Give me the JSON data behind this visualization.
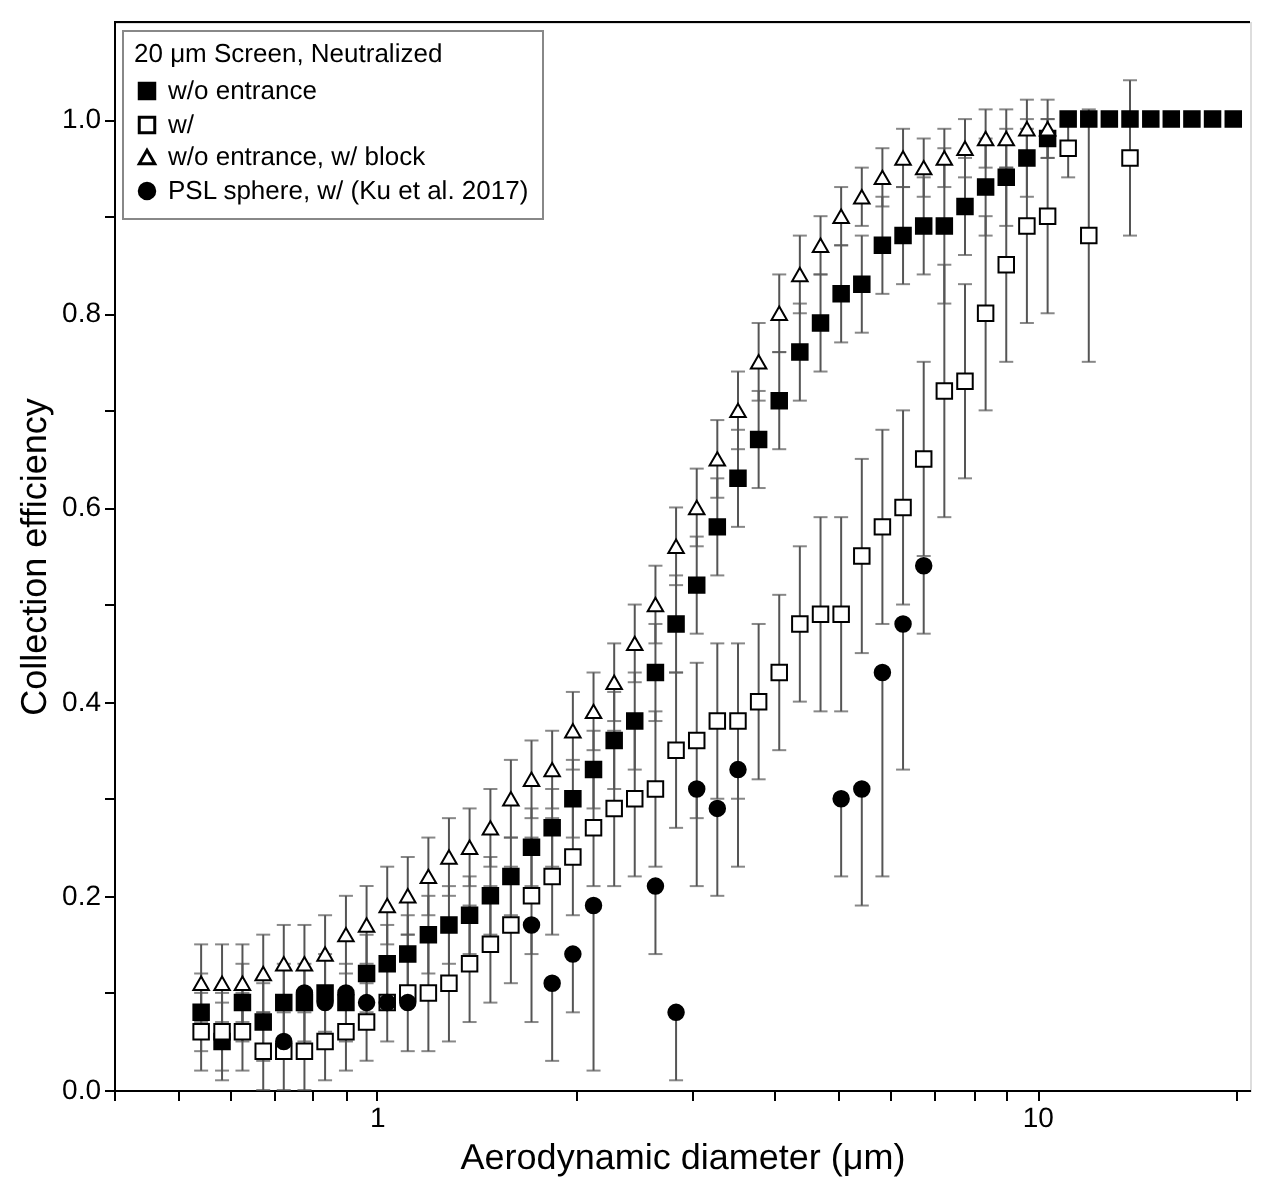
{
  "chart_data": {
    "type": "scatter",
    "xlabel": "Aerodynamic diameter (μm)",
    "ylabel": "Collection efficiency",
    "legend_title": "20 μm Screen, Neutralized",
    "legend": "top left",
    "grid": false,
    "log": "x",
    "xlim": [
      0.4,
      21
    ],
    "ylim": [
      0,
      1.1
    ],
    "xticks": [
      {
        "value": 0.4,
        "label": null
      },
      {
        "value": 0.5,
        "label": null
      },
      {
        "value": 0.6,
        "label": null
      },
      {
        "value": 0.7,
        "label": null
      },
      {
        "value": 0.8,
        "label": null
      },
      {
        "value": 0.9,
        "label": null
      },
      1,
      {
        "value": 2,
        "label": null
      },
      {
        "value": 3,
        "label": null
      },
      {
        "value": 4,
        "label": null
      },
      {
        "value": 5,
        "label": null
      },
      {
        "value": 6,
        "label": null
      },
      {
        "value": 7,
        "label": null
      },
      {
        "value": 8,
        "label": null
      },
      {
        "value": 9,
        "label": null
      },
      10,
      {
        "value": 20,
        "label": null
      }
    ],
    "yticks": [
      {
        "value": 0,
        "label": "0.0"
      },
      {
        "value": 0.1,
        "label": null
      },
      {
        "value": 0.2,
        "label": "0.2"
      },
      {
        "value": 0.3,
        "label": null
      },
      {
        "value": 0.4,
        "label": "0.4"
      },
      {
        "value": 0.5,
        "label": null
      },
      {
        "value": 0.6,
        "label": "0.6"
      },
      {
        "value": 0.7,
        "label": null
      },
      {
        "value": 0.8,
        "label": "0.8"
      },
      {
        "value": 0.9,
        "label": null
      },
      {
        "value": 1.0,
        "label": "1.0"
      }
    ],
    "series": [
      {
        "name": "w/o entrance",
        "color": "#000000",
        "marker": "square",
        "x": [
          0.542,
          0.583,
          0.626,
          0.673,
          0.723,
          0.777,
          0.835,
          0.898,
          0.965,
          1.037,
          1.114,
          1.197,
          1.286,
          1.382,
          1.486,
          1.596,
          1.715,
          1.843,
          1.981,
          2.129,
          2.288,
          2.458,
          2.642,
          2.839,
          3.051,
          3.278,
          3.523,
          3.786,
          4.068,
          4.371,
          4.698,
          5.048,
          5.425,
          5.829,
          6.264,
          6.732,
          7.234,
          7.774,
          8.354,
          8.977,
          9.647,
          10.37,
          11.14,
          11.97,
          12.86,
          13.82,
          14.86,
          15.96,
          17.15,
          18.43,
          19.81
        ],
        "values": [
          0.08,
          0.05,
          0.09,
          0.07,
          0.09,
          0.09,
          0.1,
          0.09,
          0.12,
          0.13,
          0.14,
          0.16,
          0.17,
          0.18,
          0.2,
          0.22,
          0.25,
          0.27,
          0.3,
          0.33,
          0.36,
          0.38,
          0.43,
          0.48,
          0.52,
          0.58,
          0.63,
          0.67,
          0.71,
          0.76,
          0.79,
          0.82,
          0.83,
          0.87,
          0.88,
          0.89,
          0.89,
          0.91,
          0.93,
          0.94,
          0.96,
          0.98,
          1,
          1,
          1,
          1,
          1,
          1,
          1,
          1,
          1
        ],
        "errors": [
          0.04,
          0.04,
          0.04,
          0.04,
          0.04,
          0.04,
          0.04,
          0.04,
          0.04,
          0.04,
          0.04,
          0.04,
          0.04,
          0.04,
          0.04,
          0.04,
          0.04,
          0.04,
          0.04,
          0.04,
          0.05,
          0.05,
          0.05,
          0.05,
          0.05,
          0.05,
          0.05,
          0.05,
          0.05,
          0.05,
          0.05,
          0.05,
          0.05,
          0.05,
          0.05,
          0.05,
          0.08,
          0.05,
          0.05,
          0.05,
          0.04,
          0.02,
          null,
          null,
          null,
          null,
          null,
          null,
          null,
          null,
          null
        ]
      },
      {
        "name": "w/",
        "color": "#000000",
        "marker": "square-open",
        "x": [
          0.542,
          0.583,
          0.626,
          0.673,
          0.723,
          0.777,
          0.835,
          0.898,
          0.965,
          1.037,
          1.114,
          1.197,
          1.286,
          1.382,
          1.486,
          1.596,
          1.715,
          1.843,
          1.981,
          2.129,
          2.288,
          2.458,
          2.642,
          2.839,
          3.051,
          3.278,
          3.523,
          3.786,
          4.068,
          4.371,
          4.698,
          5.048,
          5.425,
          5.829,
          6.264,
          6.732,
          7.234,
          7.774,
          8.354,
          8.977,
          9.647,
          10.37,
          11.14,
          11.97,
          12.86,
          13.82
        ],
        "values": [
          0.06,
          0.06,
          0.06,
          0.04,
          0.04,
          0.04,
          0.05,
          0.06,
          0.07,
          0.09,
          0.1,
          0.1,
          0.11,
          0.13,
          0.15,
          0.17,
          0.2,
          0.22,
          0.24,
          0.27,
          0.29,
          0.3,
          0.31,
          0.35,
          0.36,
          0.38,
          0.38,
          0.4,
          0.43,
          0.48,
          0.49,
          0.49,
          0.55,
          0.58,
          0.6,
          0.65,
          0.72,
          0.73,
          0.8,
          0.85,
          0.89,
          0.9,
          0.97,
          0.88,
          null,
          0.96
        ],
        "errors": [
          0.04,
          0.04,
          0.04,
          0.04,
          0.04,
          0.04,
          0.04,
          0.04,
          0.04,
          0.04,
          0.06,
          0.06,
          0.06,
          0.06,
          0.06,
          0.06,
          0.06,
          0.06,
          0.06,
          0.06,
          0.08,
          0.08,
          0.08,
          0.08,
          0.08,
          0.08,
          0.08,
          0.08,
          0.08,
          0.08,
          0.1,
          0.1,
          0.1,
          0.1,
          0.1,
          0.1,
          0.13,
          0.1,
          0.1,
          0.1,
          0.1,
          0.1,
          0.03,
          0.13,
          null,
          0.08
        ]
      },
      {
        "name": "w/o entrance, w/ block",
        "color": "#000000",
        "marker": "triangle-open",
        "x": [
          0.542,
          0.583,
          0.626,
          0.673,
          0.723,
          0.777,
          0.835,
          0.898,
          0.965,
          1.037,
          1.114,
          1.197,
          1.286,
          1.382,
          1.486,
          1.596,
          1.715,
          1.843,
          1.981,
          2.129,
          2.288,
          2.458,
          2.642,
          2.839,
          3.051,
          3.278,
          3.523,
          3.786,
          4.068,
          4.371,
          4.698,
          5.048,
          5.425,
          5.829,
          6.264,
          6.732,
          7.234,
          7.774,
          8.354,
          8.977,
          9.647,
          10.37
        ],
        "values": [
          0.11,
          0.11,
          0.11,
          0.12,
          0.13,
          0.13,
          0.14,
          0.16,
          0.17,
          0.19,
          0.2,
          0.22,
          0.24,
          0.25,
          0.27,
          0.3,
          0.32,
          0.33,
          0.37,
          0.39,
          0.42,
          0.46,
          0.5,
          0.56,
          0.6,
          0.65,
          0.7,
          0.75,
          0.8,
          0.84,
          0.87,
          0.9,
          0.92,
          0.94,
          0.96,
          0.95,
          0.96,
          0.97,
          0.98,
          0.98,
          0.99,
          0.99
        ],
        "errors": [
          0.04,
          0.04,
          0.04,
          0.04,
          0.04,
          0.04,
          0.04,
          0.04,
          0.04,
          0.04,
          0.04,
          0.04,
          0.04,
          0.04,
          0.04,
          0.04,
          0.04,
          0.04,
          0.04,
          0.04,
          0.04,
          0.04,
          0.04,
          0.04,
          0.04,
          0.04,
          0.04,
          0.04,
          0.04,
          0.04,
          0.03,
          0.03,
          0.03,
          0.03,
          0.03,
          0.03,
          0.03,
          0.03,
          0.03,
          0.03,
          0.03,
          0.03
        ]
      },
      {
        "name": "PSL sphere, w/ (Ku et al. 2017)",
        "color": "#000000",
        "marker": "circle",
        "x": [
          0.723,
          0.777,
          0.835,
          0.898,
          0.965,
          1.037,
          1.114,
          1.715,
          1.843,
          1.981,
          2.129,
          2.642,
          2.839,
          3.051,
          3.278,
          3.523,
          5.048,
          5.425,
          5.829,
          6.264,
          6.732
        ],
        "values": [
          0.05,
          0.1,
          0.09,
          0.1,
          0.09,
          0.09,
          0.09,
          0.17,
          0.11,
          0.14,
          0.19,
          0.21,
          0.08,
          0.31,
          0.29,
          0.33,
          0.3,
          0.31,
          0.43,
          0.48,
          0.54
        ],
        "errors": [
          null,
          null,
          null,
          null,
          null,
          null,
          null,
          [
            0.07,
            0.17
          ],
          [
            0.03,
            0.11
          ],
          [
            0.08,
            0.14
          ],
          [
            0.02,
            0.19
          ],
          [
            0.14,
            0.21
          ],
          [
            0.01,
            0.08
          ],
          [
            0.21,
            0.31
          ],
          [
            0.2,
            0.29
          ],
          [
            0.23,
            0.33
          ],
          [
            0.22,
            0.3
          ],
          [
            0.19,
            0.31
          ],
          [
            0.22,
            0.43
          ],
          [
            0.33,
            0.48
          ],
          [
            0.47,
            0.54
          ]
        ]
      }
    ]
  }
}
